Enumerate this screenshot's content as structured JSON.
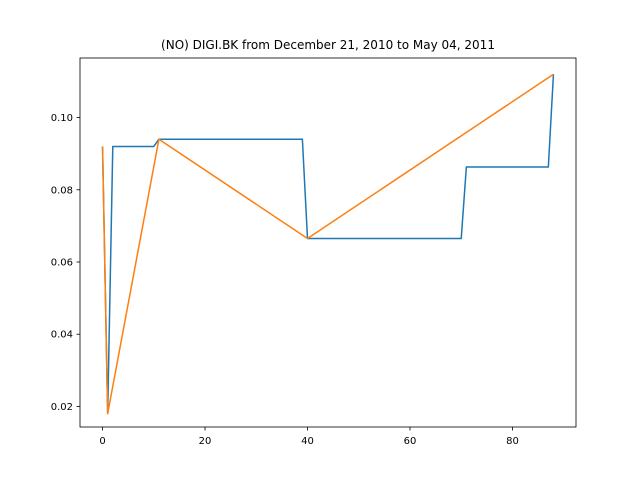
{
  "chart_data": {
    "type": "line",
    "title": "(NO) DIGI.BK from December 21, 2010 to May 04, 2011",
    "xlabel": "",
    "ylabel": "",
    "xlim": [
      -4.4,
      92.4
    ],
    "ylim": [
      0.0143,
      0.1165
    ],
    "grid": false,
    "xticks": [
      0,
      20,
      40,
      60,
      80
    ],
    "xtick_labels": [
      "0",
      "20",
      "40",
      "60",
      "80"
    ],
    "yticks": [
      0.02,
      0.04,
      0.06,
      0.08,
      0.1
    ],
    "ytick_labels": [
      "0.02",
      "0.04",
      "0.06",
      "0.08",
      "0.10"
    ],
    "series": [
      {
        "color": "#1f77b4",
        "x": [
          0,
          1,
          2,
          10,
          11,
          39,
          40,
          70,
          71,
          87,
          88
        ],
        "y": [
          0.092,
          0.018,
          0.092,
          0.092,
          0.094,
          0.094,
          0.0665,
          0.0665,
          0.0863,
          0.0863,
          0.112
        ]
      },
      {
        "color": "#ff7f0e",
        "x": [
          0,
          1,
          11,
          40,
          88
        ],
        "y": [
          0.092,
          0.018,
          0.094,
          0.0665,
          0.112
        ]
      }
    ]
  }
}
